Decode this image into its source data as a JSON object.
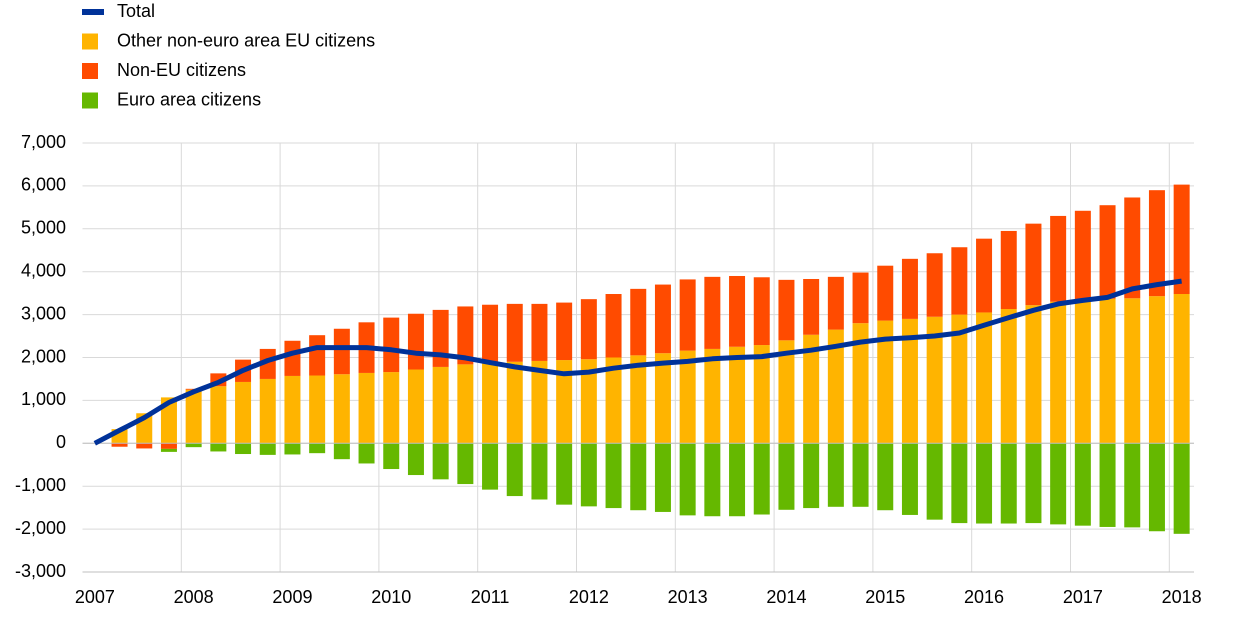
{
  "chart_data": {
    "type": "bar",
    "categories": [
      "2007",
      null,
      null,
      null,
      "2008",
      null,
      null,
      null,
      "2009",
      null,
      null,
      null,
      "2010",
      null,
      null,
      null,
      "2011",
      null,
      null,
      null,
      "2012",
      null,
      null,
      null,
      "2013",
      null,
      null,
      null,
      "2014",
      null,
      null,
      null,
      "2015",
      null,
      null,
      null,
      "2016",
      null,
      null,
      null,
      "2017",
      null,
      null,
      null,
      "2018"
    ],
    "series": [
      {
        "name": "Total",
        "type": "line",
        "color": "#003299",
        "values": [
          0,
          300,
          600,
          950,
          1200,
          1420,
          1700,
          1930,
          2100,
          2230,
          2230,
          2230,
          2180,
          2100,
          2060,
          1990,
          1880,
          1780,
          1700,
          1620,
          1660,
          1750,
          1820,
          1870,
          1910,
          1970,
          2000,
          2020,
          2100,
          2170,
          2260,
          2360,
          2430,
          2460,
          2500,
          2570,
          2750,
          2930,
          3100,
          3250,
          3330,
          3400,
          3600,
          3700,
          3780
        ]
      },
      {
        "name": "Other non-euro area EU citizens",
        "color": "#ffb400",
        "values": [
          0,
          330,
          700,
          1070,
          1250,
          1330,
          1430,
          1500,
          1570,
          1580,
          1610,
          1640,
          1660,
          1720,
          1780,
          1840,
          1880,
          1900,
          1920,
          1940,
          1960,
          2000,
          2050,
          2100,
          2160,
          2200,
          2250,
          2290,
          2400,
          2530,
          2650,
          2800,
          2860,
          2900,
          2950,
          3000,
          3050,
          3130,
          3220,
          3300,
          3350,
          3370,
          3380,
          3430,
          3480
        ]
      },
      {
        "name": "Non-EU citizens",
        "color": "#ff4b00",
        "values": [
          0,
          -80,
          -120,
          -130,
          20,
          300,
          520,
          700,
          820,
          940,
          1060,
          1180,
          1270,
          1300,
          1330,
          1350,
          1350,
          1350,
          1330,
          1340,
          1400,
          1480,
          1550,
          1600,
          1660,
          1680,
          1650,
          1580,
          1410,
          1300,
          1230,
          1180,
          1280,
          1400,
          1480,
          1570,
          1720,
          1820,
          1900,
          2000,
          2070,
          2180,
          2350,
          2470,
          2550
        ]
      },
      {
        "name": "Euro area citizens",
        "color": "#65b800",
        "values": [
          0,
          0,
          0,
          -70,
          -90,
          -190,
          -250,
          -270,
          -260,
          -230,
          -370,
          -470,
          -600,
          -740,
          -840,
          -950,
          -1080,
          -1230,
          -1310,
          -1430,
          -1470,
          -1510,
          -1560,
          -1600,
          -1680,
          -1700,
          -1700,
          -1660,
          -1550,
          -1510,
          -1480,
          -1480,
          -1560,
          -1670,
          -1780,
          -1860,
          -1870,
          -1870,
          -1860,
          -1890,
          -1920,
          -1950,
          -1960,
          -2050,
          -2110
        ]
      }
    ],
    "ylim": [
      -3000,
      7000
    ],
    "yticks": [
      {
        "value": -3000,
        "label": "-3,000"
      },
      {
        "value": -2000,
        "label": "-2,000"
      },
      {
        "value": -1000,
        "label": "-1,000"
      },
      0,
      {
        "value": 1000,
        "label": "1,000"
      },
      {
        "value": 2000,
        "label": "2,000"
      },
      {
        "value": 3000,
        "label": "3,000"
      },
      {
        "value": 4000,
        "label": "4,000"
      },
      {
        "value": 5000,
        "label": "5,000"
      },
      {
        "value": 6000,
        "label": "6,000"
      },
      {
        "value": 7000,
        "label": "7,000"
      }
    ],
    "grid": true,
    "legend": "top-left"
  }
}
